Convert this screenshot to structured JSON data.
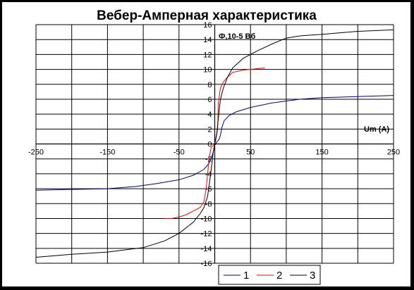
{
  "chart_data": {
    "type": "line",
    "title": "Вебер-Амперная характеристика",
    "xlabel": "Um (A)",
    "ylabel": "Ф,10-5 Вб",
    "xlim": [
      -250,
      250
    ],
    "ylim": [
      -16,
      16
    ],
    "x_ticks": [
      "-250",
      "-150",
      "-50",
      "50",
      "150",
      "250"
    ],
    "y_ticks": [
      "16",
      "14",
      "12",
      "10",
      "8",
      "6",
      "4",
      "2",
      "0",
      "-2",
      "-4",
      "-6",
      "-8",
      "-10",
      "-12",
      "-14",
      "-16"
    ],
    "grid": true,
    "legend_position": "bottom",
    "series": [
      {
        "name": "1",
        "color": "#000080",
        "points": [
          [
            -250,
            -6.2
          ],
          [
            -200,
            -6.1
          ],
          [
            -150,
            -6.0
          ],
          [
            -110,
            -5.7
          ],
          [
            -80,
            -5.3
          ],
          [
            -50,
            -4.8
          ],
          [
            -30,
            -4.2
          ],
          [
            -15,
            -3.4
          ],
          [
            -8,
            -2.6
          ],
          [
            -4,
            -1.7
          ],
          [
            -2,
            -1.0
          ],
          [
            0,
            -0.2
          ],
          [
            3,
            0.3
          ],
          [
            6,
            0.6
          ],
          [
            8,
            1.2
          ],
          [
            10,
            2.2
          ],
          [
            13,
            3.1
          ],
          [
            20,
            3.8
          ],
          [
            30,
            4.3
          ],
          [
            50,
            4.9
          ],
          [
            80,
            5.5
          ],
          [
            120,
            6.0
          ],
          [
            150,
            6.2
          ],
          [
            200,
            6.35
          ],
          [
            250,
            6.5
          ]
        ]
      },
      {
        "name": "2",
        "color": "#FF0000",
        "points": [
          [
            -70,
            -10.0
          ],
          [
            -60,
            -10.0
          ],
          [
            -50,
            -9.8
          ],
          [
            -40,
            -9.5
          ],
          [
            -30,
            -9.0
          ],
          [
            -20,
            -8.5
          ],
          [
            -15,
            -7.7
          ],
          [
            -12,
            -6.0
          ],
          [
            -10,
            -4.0
          ],
          [
            -8,
            -2.0
          ],
          [
            -5,
            -0.5
          ],
          [
            0,
            0.0
          ],
          [
            2,
            0.8
          ],
          [
            4,
            2.0
          ],
          [
            5,
            5.5
          ],
          [
            8,
            7.5
          ],
          [
            12,
            8.3
          ],
          [
            18,
            9.0
          ],
          [
            25,
            9.6
          ],
          [
            40,
            9.9
          ],
          [
            60,
            10.1
          ],
          [
            70,
            10.2
          ]
        ]
      },
      {
        "name": "3",
        "color": "#000000",
        "points": [
          [
            -250,
            -15.2
          ],
          [
            -200,
            -14.8
          ],
          [
            -150,
            -14.5
          ],
          [
            -100,
            -13.9
          ],
          [
            -70,
            -13.0
          ],
          [
            -50,
            -12.0
          ],
          [
            -30,
            -10.5
          ],
          [
            -20,
            -9.3
          ],
          [
            -15,
            -8.5
          ],
          [
            -10,
            -7.0
          ],
          [
            -5,
            -3.5
          ],
          [
            -2,
            -1.0
          ],
          [
            0,
            0.0
          ],
          [
            3,
            1.5
          ],
          [
            5,
            3.5
          ],
          [
            8,
            6.0
          ],
          [
            12,
            7.5
          ],
          [
            18,
            9.0
          ],
          [
            25,
            10.2
          ],
          [
            40,
            11.5
          ],
          [
            60,
            12.5
          ],
          [
            80,
            13.4
          ],
          [
            100,
            14.2
          ],
          [
            120,
            14.5
          ],
          [
            150,
            14.7
          ],
          [
            200,
            15.1
          ],
          [
            250,
            15.3
          ]
        ]
      }
    ]
  }
}
